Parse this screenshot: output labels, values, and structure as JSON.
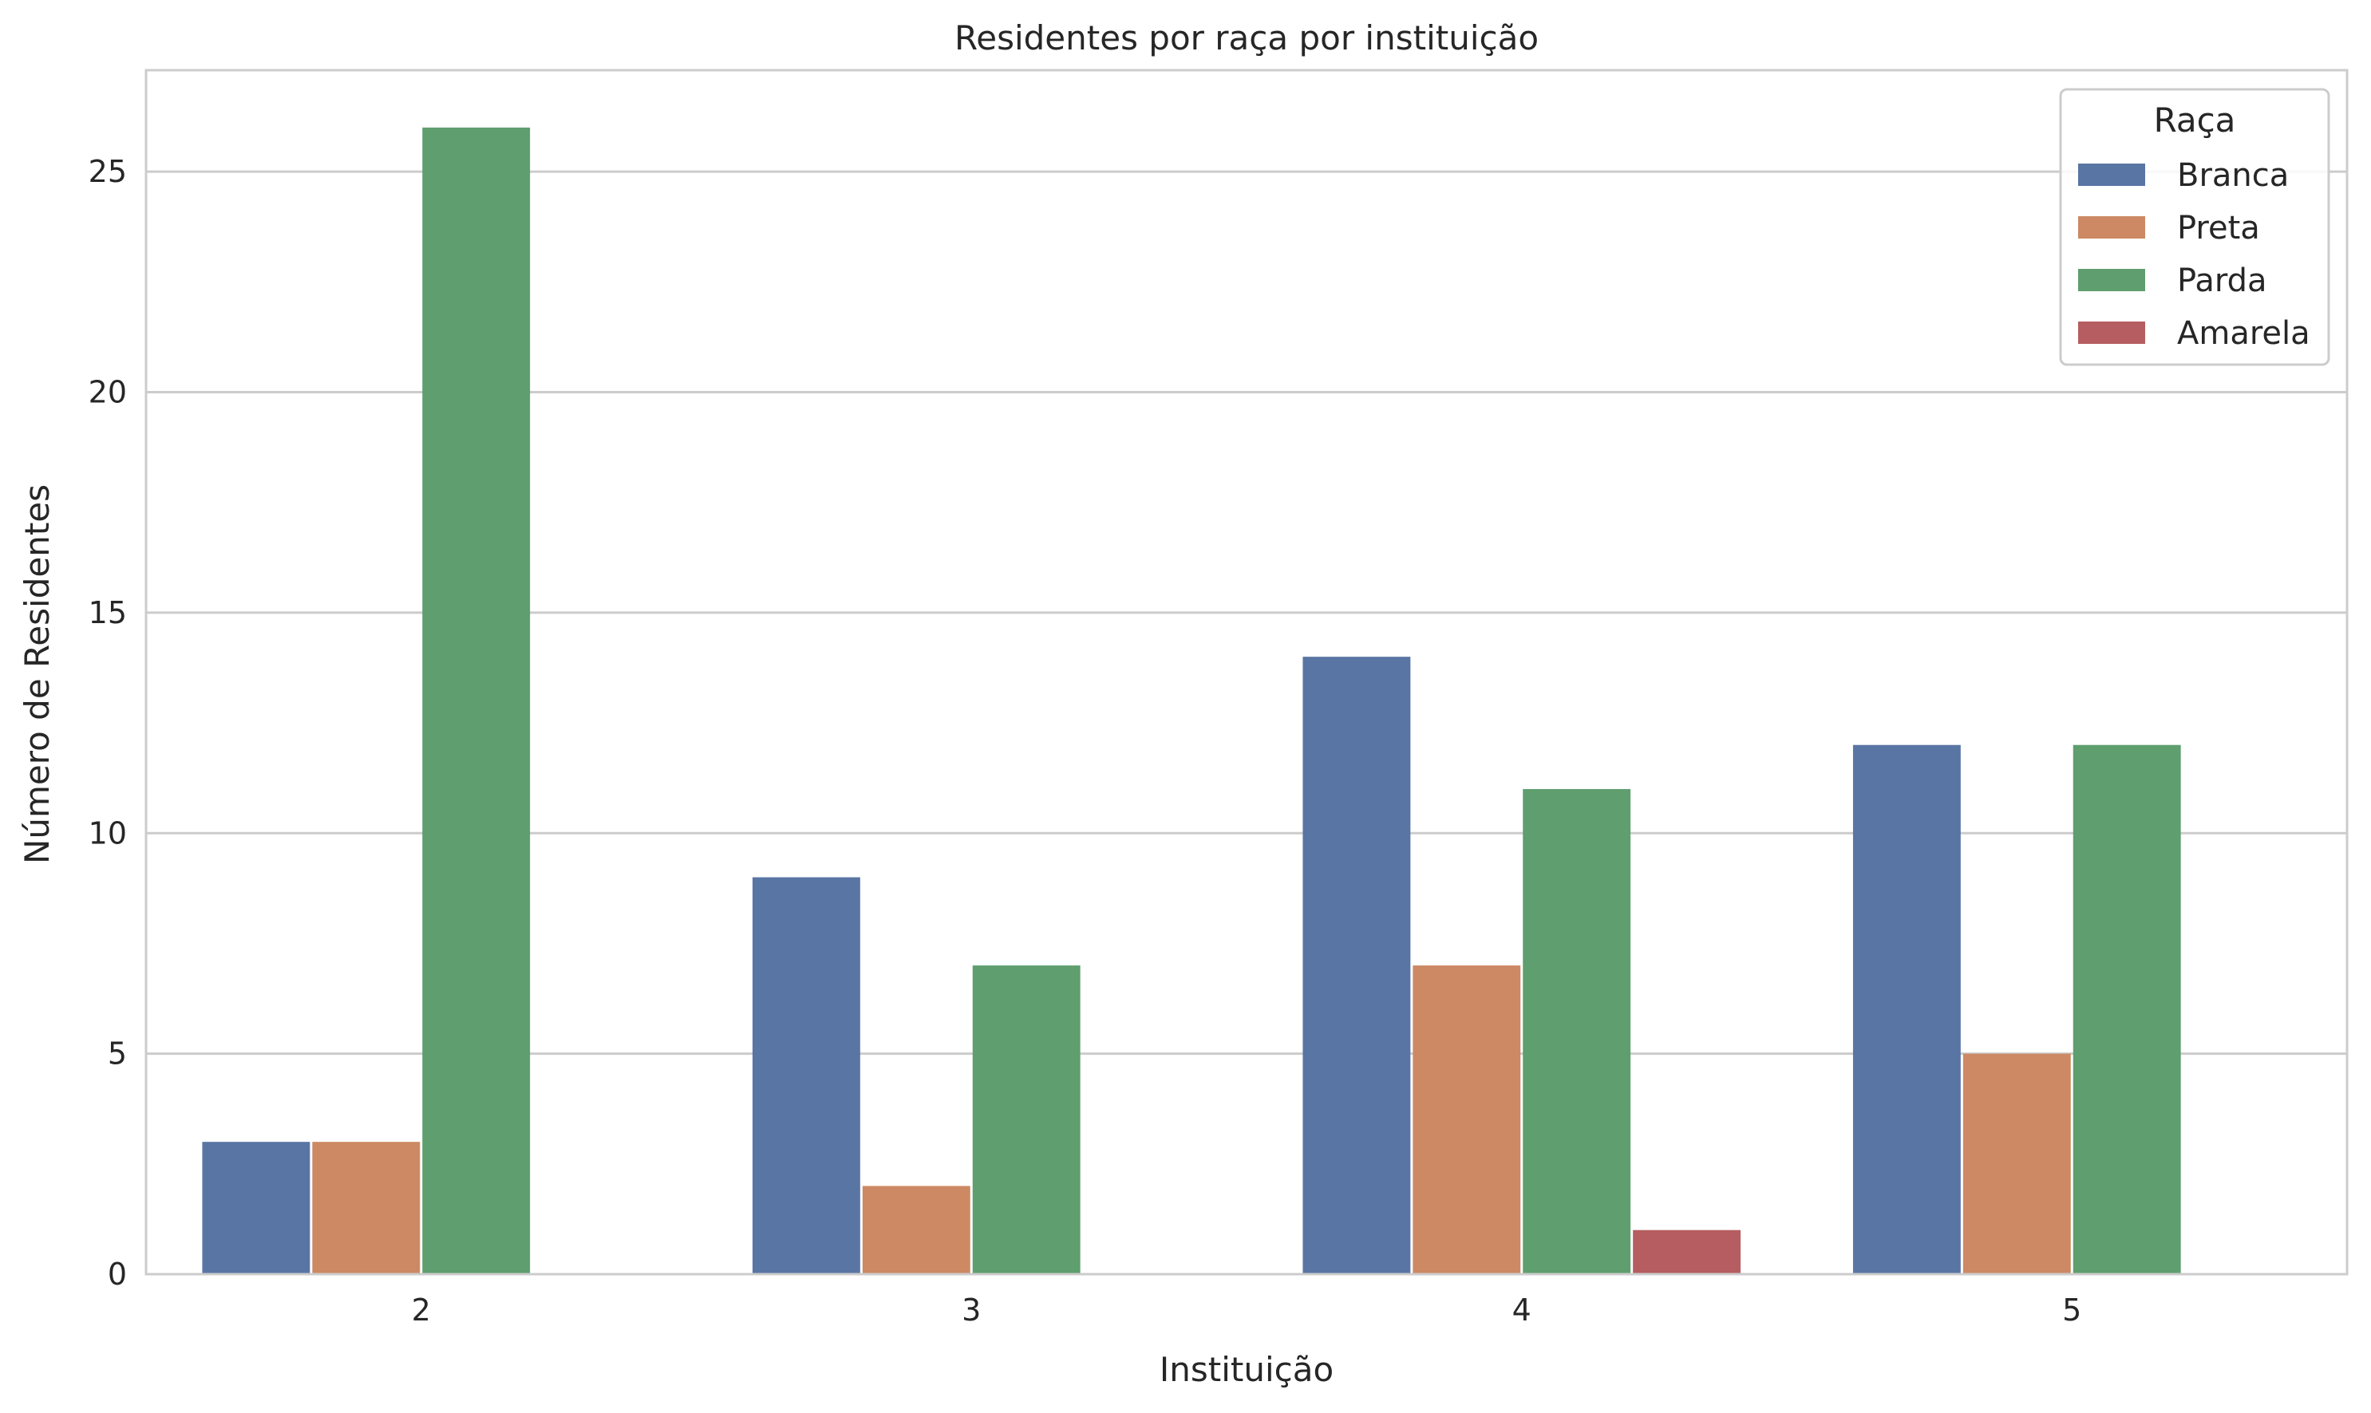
{
  "chart_data": {
    "type": "bar",
    "title": "Residentes por raça por instituição",
    "xlabel": "Instituição",
    "ylabel": "Número de Residentes",
    "categories": [
      "2",
      "3",
      "4",
      "5"
    ],
    "ylim": [
      0,
      27.3
    ],
    "yticks": [
      0,
      5,
      10,
      15,
      20,
      25
    ],
    "grid": true,
    "legend": {
      "title": "Raça",
      "placement": "top-right"
    },
    "series": [
      {
        "name": "Branca",
        "color": "#5975a4",
        "values": [
          3,
          9,
          14,
          12
        ]
      },
      {
        "name": "Preta",
        "color": "#cc8963",
        "values": [
          3,
          2,
          7,
          5
        ]
      },
      {
        "name": "Parda",
        "color": "#5f9e6e",
        "values": [
          26,
          7,
          11,
          12
        ]
      },
      {
        "name": "Amarela",
        "color": "#b55d60",
        "values": [
          0,
          0,
          1,
          0
        ]
      }
    ]
  }
}
